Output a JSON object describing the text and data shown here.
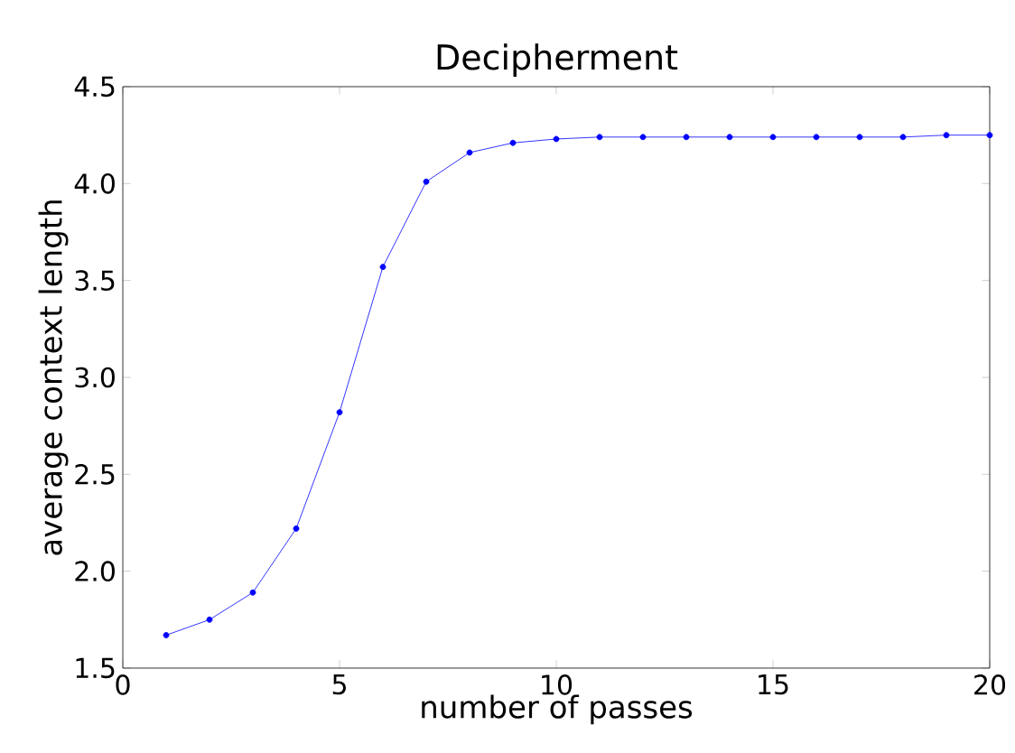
{
  "chart_data": {
    "type": "line",
    "title": "Decipherment",
    "xlabel": "number of passes",
    "ylabel": "average context length",
    "x": [
      1,
      2,
      3,
      4,
      5,
      6,
      7,
      8,
      9,
      10,
      11,
      12,
      13,
      14,
      15,
      16,
      17,
      18,
      19,
      20
    ],
    "values": [
      1.67,
      1.75,
      1.89,
      2.22,
      2.82,
      3.57,
      4.01,
      4.16,
      4.21,
      4.23,
      4.24,
      4.24,
      4.24,
      4.24,
      4.24,
      4.24,
      4.24,
      4.24,
      4.25,
      4.25
    ],
    "color": "#0000ff",
    "marker": "circle",
    "line_style": "solid",
    "xlim": [
      0,
      20
    ],
    "ylim": [
      1.5,
      4.5
    ],
    "xticks": [
      0,
      5,
      10,
      15,
      20
    ],
    "yticks": [
      {
        "value": 1.5,
        "label": "1.5"
      },
      {
        "value": 2.0,
        "label": "2.0"
      },
      {
        "value": 2.5,
        "label": "2.5"
      },
      {
        "value": 3.0,
        "label": "3.0"
      },
      {
        "value": 3.5,
        "label": "3.5"
      },
      {
        "value": 4.0,
        "label": "4.0"
      },
      {
        "value": 4.5,
        "label": "4.5"
      }
    ],
    "grid": false
  }
}
